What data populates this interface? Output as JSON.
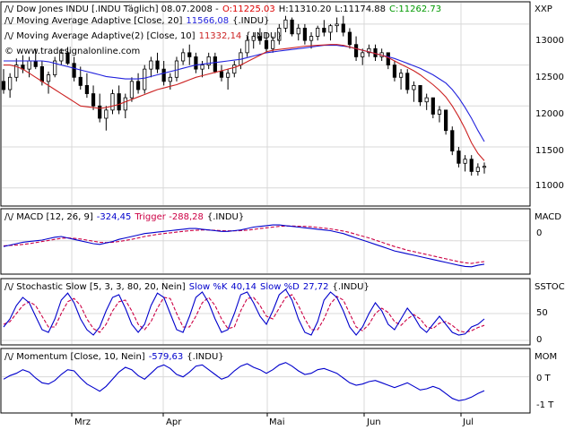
{
  "main_panel": {
    "header": {
      "symbol": "Dow Jones INDU [.INDU  Täglich] 08.07.2008 -",
      "open": "O:11225.03",
      "high": "H:11310.20",
      "low": "L:11174.88",
      "close": "C:11262.73"
    },
    "ma20": {
      "label": "Moving Average Adaptive [Close, 20]",
      "value": "11566,08",
      "symbol": "{.INDU}"
    },
    "ma10": {
      "label": "Moving Average Adaptive(2) [Close, 10]",
      "value": "11332,14",
      "symbol": "{.INDU}"
    },
    "watermark": "www.tradesignalonline.com",
    "axis_label": "XXP",
    "y_ticks": [
      "13000",
      "12500",
      "12000",
      "11500",
      "11000"
    ]
  },
  "macd_panel": {
    "label": "MACD [12, 26, 9]",
    "value": "-324,45",
    "trigger_label": "Trigger",
    "trigger_value": "-288,28",
    "symbol": "{.INDU}",
    "axis_label": "MACD",
    "y_ticks": [
      "0"
    ]
  },
  "stoch_panel": {
    "label": "Stochastic Slow [5, 3, 3, 80, 20, Nein]",
    "k_label": "Slow %K",
    "k_value": "40,14",
    "d_label": "Slow %D",
    "d_value": "27,72",
    "symbol": "{.INDU}",
    "axis_label": "SSTOC",
    "y_ticks": [
      "50",
      "0"
    ]
  },
  "mom_panel": {
    "label": "Momentum [Close, 10, Nein]",
    "value": "-579,63",
    "symbol": "{.INDU}",
    "axis_label": "MOM",
    "y_ticks": [
      "0 T",
      "-1 T"
    ]
  },
  "x_axis": [
    "Mrz",
    "Apr",
    "Mai",
    "Jun",
    "Jul"
  ],
  "colors": {
    "up": "#ffffff",
    "down": "#000000",
    "ma20": "#2222dd",
    "ma10": "#cc2222",
    "open": "#dd0000",
    "close": "#009900",
    "macd": "#0000cc",
    "trigger": "#cc0044",
    "grid": "#d8d8d8"
  },
  "chart_data": [
    {
      "type": "candlestick",
      "y_range": [
        10800,
        13250
      ],
      "candles": [
        [
          12300,
          12450,
          12150,
          12200
        ],
        [
          12200,
          12400,
          12100,
          12350
        ],
        [
          12350,
          12580,
          12300,
          12500
        ],
        [
          12500,
          12620,
          12400,
          12450
        ],
        [
          12450,
          12600,
          12350,
          12550
        ],
        [
          12550,
          12700,
          12450,
          12480
        ],
        [
          12480,
          12550,
          12250,
          12300
        ],
        [
          12300,
          12420,
          12150,
          12380
        ],
        [
          12380,
          12600,
          12350,
          12550
        ],
        [
          12550,
          12700,
          12500,
          12650
        ],
        [
          12650,
          12720,
          12500,
          12520
        ],
        [
          12520,
          12600,
          12300,
          12350
        ],
        [
          12350,
          12480,
          12200,
          12250
        ],
        [
          12250,
          12400,
          12100,
          12150
        ],
        [
          12150,
          12250,
          11950,
          12000
        ],
        [
          12000,
          12150,
          11800,
          11850
        ],
        [
          11850,
          12000,
          11700,
          11950
        ],
        [
          11950,
          12200,
          11900,
          12150
        ],
        [
          12150,
          12250,
          11900,
          11950
        ],
        [
          11950,
          12150,
          11850,
          12100
        ],
        [
          12100,
          12350,
          12050,
          12300
        ],
        [
          12300,
          12400,
          12150,
          12200
        ],
        [
          12200,
          12500,
          12150,
          12450
        ],
        [
          12450,
          12600,
          12350,
          12550
        ],
        [
          12550,
          12650,
          12400,
          12450
        ],
        [
          12450,
          12550,
          12250,
          12300
        ],
        [
          12300,
          12400,
          12200,
          12350
        ],
        [
          12350,
          12600,
          12300,
          12550
        ],
        [
          12550,
          12700,
          12500,
          12650
        ],
        [
          12650,
          12750,
          12500,
          12600
        ],
        [
          12600,
          12650,
          12400,
          12450
        ],
        [
          12450,
          12550,
          12350,
          12500
        ],
        [
          12500,
          12650,
          12450,
          12600
        ],
        [
          12600,
          12650,
          12400,
          12420
        ],
        [
          12420,
          12500,
          12300,
          12350
        ],
        [
          12350,
          12450,
          12200,
          12400
        ],
        [
          12400,
          12550,
          12350,
          12500
        ],
        [
          12500,
          12700,
          12450,
          12650
        ],
        [
          12650,
          12850,
          12600,
          12800
        ],
        [
          12800,
          12900,
          12700,
          12850
        ],
        [
          12850,
          12950,
          12750,
          12800
        ],
        [
          12800,
          12900,
          12650,
          12700
        ],
        [
          12700,
          12850,
          12650,
          12800
        ],
        [
          12800,
          13000,
          12750,
          12950
        ],
        [
          12950,
          13100,
          12900,
          13050
        ],
        [
          13050,
          13080,
          12850,
          12880
        ],
        [
          12880,
          13000,
          12800,
          12950
        ],
        [
          12950,
          13000,
          12750,
          12800
        ],
        [
          12800,
          12900,
          12700,
          12850
        ],
        [
          12850,
          12980,
          12800,
          12950
        ],
        [
          12950,
          13050,
          12850,
          12900
        ],
        [
          12900,
          13000,
          12800,
          12980
        ],
        [
          12980,
          13080,
          12900,
          13000
        ],
        [
          13000,
          13100,
          12850,
          12900
        ],
        [
          12900,
          12950,
          12700,
          12750
        ],
        [
          12750,
          12850,
          12550,
          12600
        ],
        [
          12600,
          12700,
          12500,
          12650
        ],
        [
          12650,
          12750,
          12600,
          12700
        ],
        [
          12700,
          12750,
          12550,
          12600
        ],
        [
          12600,
          12700,
          12550,
          12650
        ],
        [
          12650,
          12650,
          12450,
          12500
        ],
        [
          12500,
          12550,
          12300,
          12350
        ],
        [
          12350,
          12450,
          12200,
          12400
        ],
        [
          12400,
          12450,
          12150,
          12200
        ],
        [
          12200,
          12300,
          12050,
          12250
        ],
        [
          12250,
          12250,
          12000,
          12050
        ],
        [
          12050,
          12150,
          11950,
          12100
        ],
        [
          12100,
          12100,
          11850,
          11900
        ],
        [
          11900,
          12000,
          11800,
          11950
        ],
        [
          11950,
          11950,
          11650,
          11700
        ],
        [
          11700,
          11750,
          11400,
          11450
        ],
        [
          11450,
          11500,
          11250,
          11300
        ],
        [
          11300,
          11400,
          11200,
          11350
        ],
        [
          11350,
          11400,
          11150,
          11200
        ],
        [
          11200,
          11300,
          11150,
          11250
        ],
        [
          11250,
          11310,
          11175,
          11263
        ]
      ],
      "series": [
        {
          "name": "Moving Average Adaptive [Close, 20]",
          "values": [
            12550,
            12550,
            12550,
            12550,
            12550,
            12550,
            12550,
            12540,
            12520,
            12500,
            12480,
            12460,
            12440,
            12420,
            12400,
            12380,
            12360,
            12350,
            12340,
            12330,
            12330,
            12330,
            12340,
            12360,
            12380,
            12400,
            12420,
            12440,
            12460,
            12480,
            12500,
            12510,
            12520,
            12530,
            12540,
            12550,
            12560,
            12570,
            12590,
            12610,
            12630,
            12650,
            12660,
            12670,
            12680,
            12690,
            12700,
            12710,
            12720,
            12730,
            12740,
            12740,
            12740,
            12730,
            12720,
            12700,
            12680,
            12660,
            12640,
            12620,
            12600,
            12580,
            12550,
            12520,
            12490,
            12460,
            12420,
            12380,
            12330,
            12280,
            12200,
            12100,
            11980,
            11850,
            11700,
            11566
          ]
        },
        {
          "name": "Moving Average Adaptive(2) [Close, 10]",
          "values": [
            12500,
            12500,
            12480,
            12450,
            12400,
            12350,
            12300,
            12250,
            12200,
            12150,
            12100,
            12050,
            12000,
            11990,
            11980,
            11970,
            11980,
            12000,
            12020,
            12050,
            12080,
            12110,
            12140,
            12170,
            12200,
            12220,
            12240,
            12260,
            12290,
            12320,
            12350,
            12370,
            12390,
            12410,
            12430,
            12450,
            12470,
            12500,
            12540,
            12580,
            12620,
            12660,
            12680,
            12690,
            12700,
            12710,
            12720,
            12730,
            12735,
            12740,
            12745,
            12750,
            12750,
            12740,
            12720,
            12700,
            12680,
            12660,
            12640,
            12620,
            12590,
            12550,
            12510,
            12470,
            12430,
            12380,
            12320,
            12260,
            12190,
            12110,
            12000,
            11870,
            11720,
            11550,
            11420,
            11332
          ]
        }
      ]
    },
    {
      "type": "line",
      "y_range": [
        -450,
        420
      ],
      "series": [
        {
          "name": "MACD",
          "values": [
            -80,
            -60,
            -40,
            -20,
            -10,
            0,
            10,
            30,
            50,
            60,
            40,
            20,
            0,
            -20,
            -40,
            -50,
            -30,
            -10,
            20,
            40,
            60,
            80,
            100,
            110,
            120,
            130,
            140,
            150,
            160,
            170,
            170,
            160,
            150,
            140,
            130,
            130,
            140,
            150,
            170,
            190,
            200,
            210,
            220,
            220,
            210,
            200,
            190,
            180,
            170,
            160,
            150,
            140,
            120,
            100,
            70,
            40,
            10,
            -20,
            -50,
            -80,
            -110,
            -140,
            -160,
            -180,
            -200,
            -220,
            -240,
            -260,
            -280,
            -300,
            -320,
            -340,
            -355,
            -360,
            -340,
            -324
          ]
        },
        {
          "name": "Trigger",
          "values": [
            -70,
            -65,
            -60,
            -50,
            -40,
            -25,
            -10,
            5,
            20,
            35,
            40,
            35,
            25,
            10,
            -5,
            -20,
            -25,
            -20,
            -10,
            5,
            20,
            40,
            60,
            75,
            90,
            100,
            110,
            120,
            130,
            140,
            145,
            150,
            150,
            145,
            140,
            138,
            138,
            140,
            148,
            158,
            170,
            180,
            190,
            200,
            205,
            205,
            203,
            200,
            195,
            185,
            175,
            165,
            150,
            135,
            115,
            90,
            65,
            40,
            10,
            -20,
            -50,
            -80,
            -105,
            -130,
            -150,
            -170,
            -190,
            -210,
            -230,
            -250,
            -270,
            -290,
            -305,
            -315,
            -300,
            -288
          ]
        }
      ]
    },
    {
      "type": "line",
      "y_range": [
        0,
        100
      ],
      "series": [
        {
          "name": "Slow %K",
          "values": [
            25,
            40,
            65,
            80,
            70,
            45,
            20,
            15,
            40,
            75,
            88,
            70,
            40,
            20,
            10,
            25,
            55,
            80,
            85,
            60,
            30,
            15,
            30,
            65,
            88,
            80,
            50,
            20,
            15,
            45,
            80,
            90,
            70,
            40,
            15,
            20,
            50,
            85,
            90,
            70,
            45,
            30,
            55,
            85,
            95,
            75,
            40,
            15,
            10,
            35,
            75,
            90,
            80,
            55,
            25,
            10,
            25,
            50,
            70,
            55,
            30,
            20,
            40,
            60,
            45,
            25,
            15,
            30,
            45,
            30,
            15,
            10,
            12,
            25,
            30,
            40
          ]
        },
        {
          "name": "Slow %D",
          "values": [
            30,
            35,
            50,
            65,
            72,
            65,
            45,
            25,
            25,
            50,
            72,
            78,
            65,
            40,
            22,
            15,
            30,
            55,
            72,
            75,
            55,
            30,
            20,
            35,
            60,
            80,
            78,
            50,
            25,
            25,
            45,
            70,
            80,
            65,
            40,
            22,
            25,
            55,
            78,
            80,
            65,
            45,
            40,
            60,
            80,
            85,
            65,
            40,
            20,
            20,
            40,
            68,
            82,
            75,
            50,
            25,
            18,
            30,
            50,
            60,
            52,
            35,
            28,
            40,
            48,
            40,
            25,
            22,
            32,
            35,
            28,
            18,
            15,
            18,
            24,
            28
          ]
        }
      ]
    },
    {
      "type": "line",
      "y_range": [
        -1400,
        700
      ],
      "series": [
        {
          "name": "Momentum",
          "values": [
            -100,
            50,
            150,
            300,
            200,
            -50,
            -250,
            -300,
            -150,
            100,
            300,
            250,
            -50,
            -300,
            -450,
            -600,
            -400,
            -100,
            200,
            400,
            300,
            50,
            -100,
            150,
            400,
            500,
            350,
            100,
            0,
            200,
            450,
            500,
            300,
            100,
            -100,
            0,
            250,
            450,
            550,
            400,
            300,
            150,
            300,
            500,
            600,
            450,
            250,
            100,
            150,
            300,
            350,
            250,
            150,
            -50,
            -250,
            -350,
            -300,
            -200,
            -150,
            -250,
            -350,
            -450,
            -350,
            -250,
            -400,
            -550,
            -500,
            -400,
            -500,
            -700,
            -900,
            -1000,
            -950,
            -850,
            -700,
            -580
          ]
        }
      ]
    }
  ]
}
